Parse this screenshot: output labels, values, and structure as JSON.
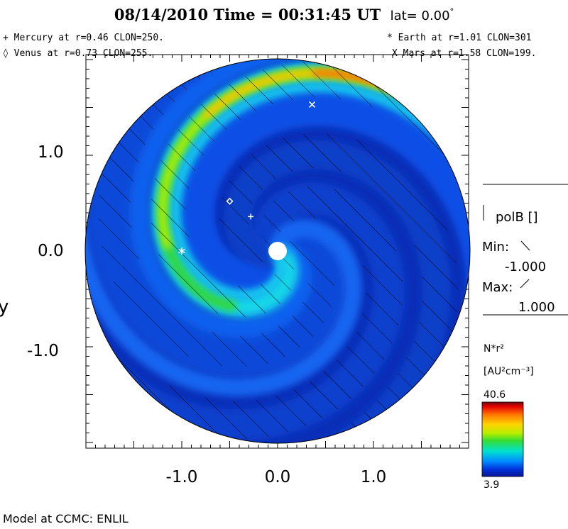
{
  "header": {
    "title": "08/14/2010 Time = 00:31:45 UT",
    "lat_label": "lat= 0.00",
    "lat_degree": "°"
  },
  "planets": {
    "mercury": "+ Mercury at r=0.46 CLON=250.",
    "venus": "◊ Venus at r=0.73 CLON=255.",
    "earth": "* Earth at  r=1.01 CLON=301",
    "mars": "X Mars at r=1.58 CLON=199."
  },
  "legend": {
    "var_label": "polB []",
    "min_label": "Min:",
    "min_value": "-1.000",
    "max_label": "Max:",
    "max_value": "1.000",
    "quantity": "N*r²",
    "unit": "[AU²cm⁻³]",
    "colorbar_max": "40.6",
    "colorbar_min": "3.9",
    "colorbar_colors": [
      "#6a0a0a",
      "#e60000",
      "#ff7700",
      "#ffd400",
      "#b7ee00",
      "#33dd33",
      "#00e0d0",
      "#0088ff",
      "#0033dd",
      "#0a1590"
    ]
  },
  "footer": "Model at CCMC: ENLIL",
  "chart_data": {
    "type": "heatmap",
    "projection": "polar (solar equatorial plane)",
    "xlabel": "",
    "ylabel": "y",
    "xlim": [
      -2.0,
      2.0
    ],
    "ylim": [
      -2.0,
      2.0
    ],
    "x_ticks": [
      "-1.0",
      "0.0",
      "1.0"
    ],
    "y_ticks": [
      "1.0",
      "0.0",
      "-1.0"
    ],
    "x_tick_values": [
      -1.0,
      0.0,
      1.0
    ],
    "y_tick_values": [
      1.0,
      0.0,
      -1.0
    ],
    "domain_radius_au": 2.0,
    "colorbar": {
      "min": 3.9,
      "max": 40.6
    },
    "hatched": "polB = -1 sector",
    "markers": [
      {
        "name": "Earth",
        "symbol": "*",
        "x": -1.0,
        "y": 0.0
      },
      {
        "name": "Venus",
        "symbol": "◊",
        "x": -0.5,
        "y": 0.52
      },
      {
        "name": "Mercury",
        "symbol": "+",
        "x": -0.28,
        "y": 0.36
      },
      {
        "name": "Mars",
        "symbol": "X",
        "x": 0.36,
        "y": 1.53
      }
    ]
  }
}
